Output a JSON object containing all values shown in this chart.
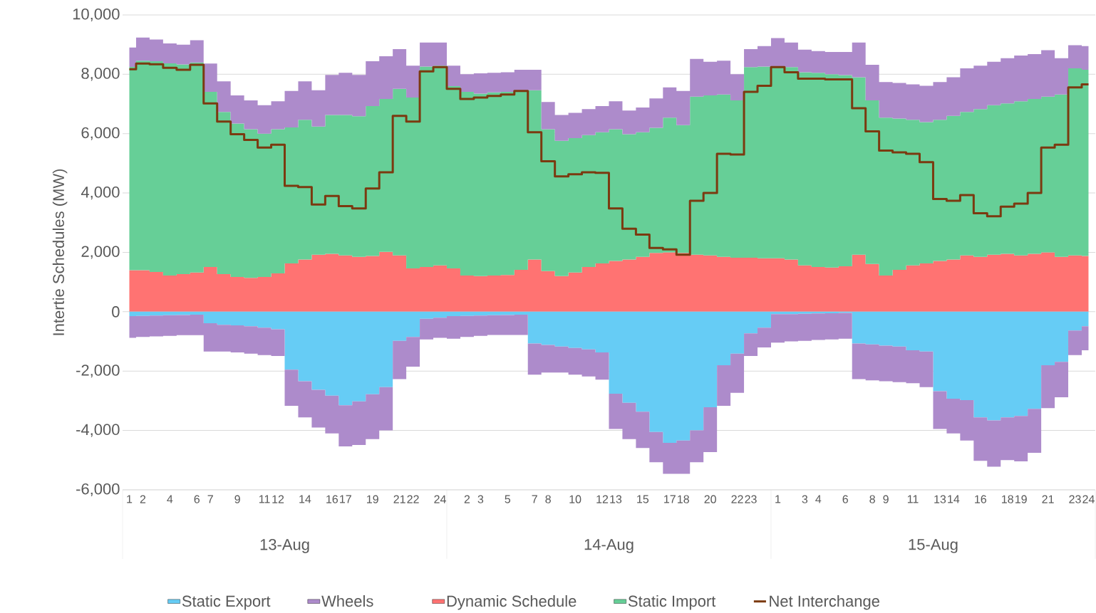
{
  "chart_data": [
    {
      "type": "area",
      "stacked": true,
      "ylabel": "Intertie Schedules (MW)",
      "categories": [
        "1",
        "2",
        null,
        "4",
        null,
        "6",
        "7",
        null,
        "9",
        null,
        "11",
        "12",
        null,
        "14",
        null,
        "16",
        "17",
        null,
        "19",
        null,
        "21",
        "22",
        null,
        "24",
        null,
        "2",
        "3",
        null,
        "5",
        null,
        "7",
        "8",
        null,
        "10",
        null,
        "12",
        "13",
        null,
        "15",
        null,
        "17",
        "18",
        null,
        "20",
        null,
        "22",
        "23",
        null,
        "1",
        null,
        "3",
        "4",
        null,
        "6",
        null,
        "8",
        "9",
        null,
        "11",
        null,
        "13",
        "14",
        null,
        "16",
        null,
        "18",
        "19",
        null,
        "21",
        null,
        "23",
        "24"
      ],
      "annotations": [
        "13-Aug",
        "14-Aug",
        "15-Aug"
      ],
      "ylim": [
        -6000,
        10000
      ],
      "yticks": [
        {
          "value": -6000,
          "label": "-6,000"
        },
        {
          "value": -4000,
          "label": "-4,000"
        },
        {
          "value": -2000,
          "label": "-2,000"
        },
        0,
        {
          "value": 2000,
          "label": "2,000"
        },
        {
          "value": 4000,
          "label": "4,000"
        },
        {
          "value": 6000,
          "label": "6,000"
        },
        {
          "value": 8000,
          "label": "8,000"
        },
        {
          "value": 10000,
          "label": "10,000"
        }
      ],
      "grid": "y",
      "legend": "bottom",
      "series": [
        {
          "name": "Dynamic Schedule",
          "color": "#ff7372",
          "values": [
            1400,
            1400,
            1340,
            1220,
            1270,
            1320,
            1510,
            1270,
            1170,
            1140,
            1170,
            1290,
            1630,
            1760,
            1920,
            1950,
            1900,
            1850,
            1880,
            2020,
            1900,
            1460,
            1510,
            1560,
            1460,
            1220,
            1200,
            1220,
            1240,
            1410,
            1760,
            1370,
            1200,
            1320,
            1510,
            1630,
            1710,
            1760,
            1850,
            1980,
            2000,
            1980,
            1920,
            1900,
            1850,
            1820,
            1820,
            1800,
            1800,
            1760,
            1560,
            1510,
            1490,
            1530,
            1920,
            1610,
            1220,
            1410,
            1560,
            1630,
            1710,
            1760,
            1900,
            1850,
            1920,
            1950,
            1900,
            1950,
            2000,
            1850,
            1900,
            1880
          ]
        },
        {
          "name": "Static Import",
          "color": "#66cf97",
          "values": [
            6850,
            7060,
            7100,
            7150,
            7060,
            7080,
            5900,
            5460,
            5170,
            5010,
            4830,
            4860,
            4580,
            4710,
            4320,
            4680,
            4730,
            4740,
            5050,
            5150,
            5610,
            5760,
            6750,
            6730,
            6140,
            6190,
            6150,
            6170,
            6170,
            6030,
            5700,
            4780,
            4560,
            4530,
            4440,
            4420,
            4440,
            4220,
            4200,
            4220,
            4540,
            4310,
            5330,
            5390,
            5470,
            5300,
            6420,
            6460,
            6460,
            6480,
            6510,
            6540,
            6510,
            6440,
            5980,
            5510,
            5320,
            5100,
            4910,
            4760,
            4760,
            4840,
            4830,
            4980,
            5040,
            5070,
            5190,
            5220,
            5250,
            5470,
            6300,
            6270
          ]
        },
        {
          "color": "#ad8bcb",
          "values": [
            650,
            780,
            730,
            670,
            670,
            750,
            950,
            1030,
            950,
            970,
            960,
            940,
            1230,
            1290,
            1220,
            1350,
            1420,
            1390,
            1510,
            1440,
            1340,
            1070,
            810,
            780,
            690,
            590,
            680,
            660,
            660,
            710,
            690,
            920,
            870,
            850,
            880,
            880,
            940,
            800,
            830,
            990,
            1020,
            1150,
            1270,
            1130,
            1140,
            880,
            610,
            690,
            960,
            830,
            760,
            730,
            750,
            780,
            1170,
            1200,
            1200,
            1200,
            1190,
            1220,
            1270,
            1300,
            1470,
            1460,
            1460,
            1520,
            1540,
            1510,
            1560,
            1220,
            780,
            800
          ]
        },
        {
          "name": "Net Interchange",
          "type": "step",
          "color": "#7b3a10",
          "line_style": "solid",
          "values": [
            8170,
            8360,
            8340,
            8220,
            8150,
            8320,
            7020,
            6410,
            5980,
            5790,
            5530,
            5630,
            4240,
            4200,
            3610,
            3900,
            3560,
            3480,
            4150,
            4700,
            6600,
            6410,
            8100,
            8240,
            7510,
            7170,
            7220,
            7270,
            7320,
            7440,
            6050,
            5070,
            4560,
            4630,
            4700,
            4680,
            3480,
            2800,
            2600,
            2150,
            2100,
            1920,
            3740,
            4000,
            5320,
            5300,
            7410,
            7610,
            8240,
            8070,
            7850,
            7850,
            7830,
            7830,
            6860,
            6080,
            5430,
            5370,
            5320,
            5040,
            3800,
            3740,
            3930,
            3320,
            3220,
            3540,
            3640,
            4000,
            5530,
            5630,
            7560,
            7660
          ]
        }
      ]
    },
    {
      "type": "area",
      "stacked": true,
      "tick_labels": false,
      "legend": "bottom",
      "categories": [
        "1",
        "2",
        null,
        "4",
        null,
        "6",
        "7",
        null,
        "9",
        null,
        "11",
        "12",
        null,
        "14",
        null,
        "16",
        "17",
        null,
        "19",
        null,
        "21",
        "22",
        null,
        "24",
        null,
        "2",
        "3",
        null,
        "5",
        null,
        "7",
        "8",
        null,
        "10",
        null,
        "12",
        "13",
        null,
        "15",
        null,
        "17",
        "18",
        null,
        "20",
        null,
        "22",
        "23",
        null,
        "1",
        null,
        "3",
        "4",
        null,
        "6",
        null,
        "8",
        "9",
        null,
        "11",
        null,
        "13",
        "14",
        null,
        "16",
        null,
        "18",
        "19",
        null,
        "21",
        null,
        "23",
        "24"
      ],
      "ylim": [
        -6000,
        10000
      ],
      "series": [
        {
          "name": "Static Export",
          "color": "#66ccf5",
          "values": [
            -150,
            -140,
            -130,
            -120,
            -110,
            -100,
            -390,
            -440,
            -460,
            -490,
            -540,
            -590,
            -1950,
            -2340,
            -2630,
            -2830,
            -3150,
            -3020,
            -2780,
            -2540,
            -980,
            -850,
            -240,
            -200,
            -150,
            -140,
            -130,
            -120,
            -110,
            -100,
            -1070,
            -1120,
            -1170,
            -1220,
            -1270,
            -1370,
            -2760,
            -3070,
            -3370,
            -4050,
            -4420,
            -4340,
            -4000,
            -3220,
            -1800,
            -1410,
            -730,
            -540,
            -80,
            -80,
            -70,
            -60,
            -50,
            -40,
            -1070,
            -1100,
            -1140,
            -1170,
            -1300,
            -1340,
            -2680,
            -2930,
            -2980,
            -3560,
            -3660,
            -3560,
            -3510,
            -3270,
            -1800,
            -1690,
            -630,
            -490
          ]
        },
        {
          "name": "Wheels",
          "color": "#ad8bcb",
          "values": [
            -730,
            -710,
            -700,
            -690,
            -680,
            -690,
            -950,
            -900,
            -910,
            -920,
            -920,
            -900,
            -1220,
            -1220,
            -1270,
            -1270,
            -1390,
            -1470,
            -1510,
            -1460,
            -1290,
            -1000,
            -690,
            -680,
            -760,
            -710,
            -680,
            -660,
            -670,
            -680,
            -1050,
            -930,
            -880,
            -900,
            -910,
            -920,
            -1190,
            -1220,
            -1220,
            -1020,
            -1040,
            -1120,
            -1070,
            -1510,
            -1370,
            -1320,
            -760,
            -660,
            -960,
            -920,
            -910,
            -890,
            -880,
            -870,
            -1200,
            -1210,
            -1200,
            -1200,
            -1110,
            -1200,
            -1270,
            -1170,
            -1360,
            -1460,
            -1560,
            -1440,
            -1530,
            -1480,
            -1450,
            -1190,
            -830,
            -810
          ]
        }
      ]
    }
  ]
}
